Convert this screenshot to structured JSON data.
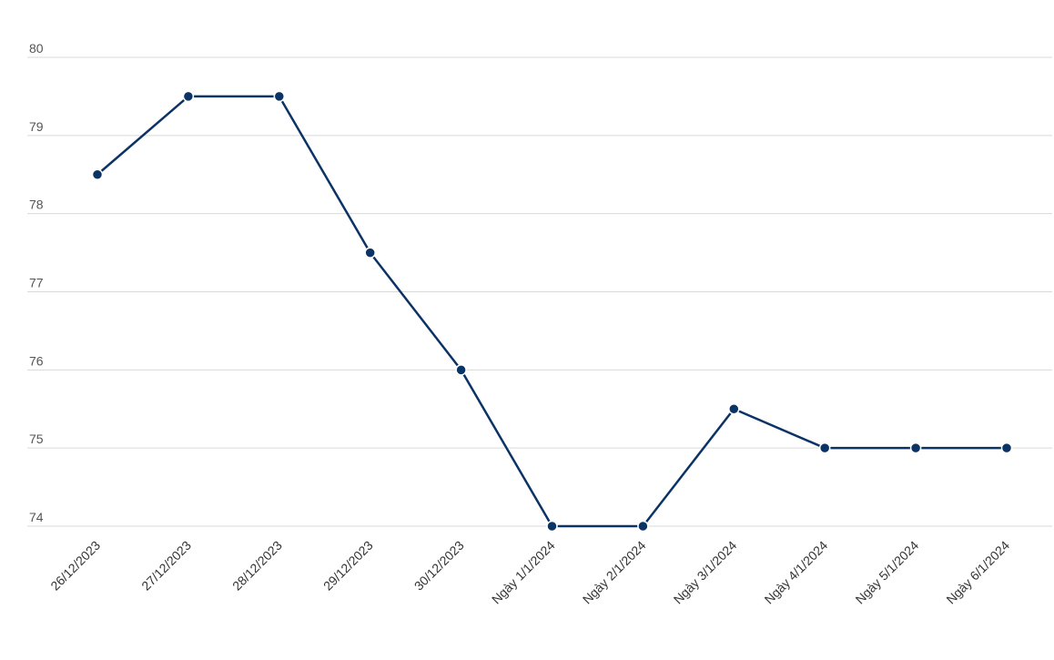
{
  "chart_data": {
    "type": "line",
    "title": "",
    "xlabel": "",
    "ylabel": "",
    "categories": [
      "26/12/2023",
      "27/12/2023",
      "28/12/2023",
      "29/12/2023",
      "30/12/2023",
      "Ngày 1/1/2024",
      "Ngày 2/1/2024",
      "Ngày 3/1/2024",
      "Ngày 4/1/2024",
      "Ngày 5/1/2024",
      "Ngày 6/1/2024"
    ],
    "series": [
      {
        "values": [
          78.5,
          79.5,
          79.5,
          77.5,
          76,
          74,
          74,
          75.5,
          75,
          75,
          75
        ],
        "color": "#0b3366"
      }
    ],
    "ylim": [
      74,
      80
    ],
    "yticks": [
      "74",
      "75",
      "76",
      "77",
      "78",
      "79",
      "80"
    ],
    "grid": true,
    "legend": "none"
  }
}
